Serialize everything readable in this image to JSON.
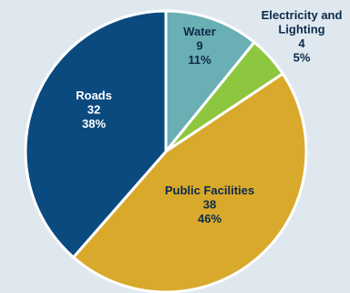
{
  "chart_data": {
    "type": "pie",
    "title": "",
    "slices": [
      {
        "label": "Water",
        "label_lines": [
          "Water"
        ],
        "value": 9,
        "percent": "11%",
        "color": "#6aafb4",
        "label_color": "#0b2a4a"
      },
      {
        "label": "Electricity and Lighting",
        "label_lines": [
          "Electricity and",
          "Lighting"
        ],
        "value": 4,
        "percent": "5%",
        "color": "#8dc63f",
        "label_color": "#0b2a4a"
      },
      {
        "label": "Public Facilities",
        "label_lines": [
          "Public Facilities"
        ],
        "value": 38,
        "percent": "46%",
        "color": "#d9a92c",
        "label_color": "#0b2a4a"
      },
      {
        "label": "Roads",
        "label_lines": [
          "Roads"
        ],
        "value": 32,
        "percent": "38%",
        "color": "#0b4a7f",
        "label_color": "#ffffff"
      }
    ]
  }
}
